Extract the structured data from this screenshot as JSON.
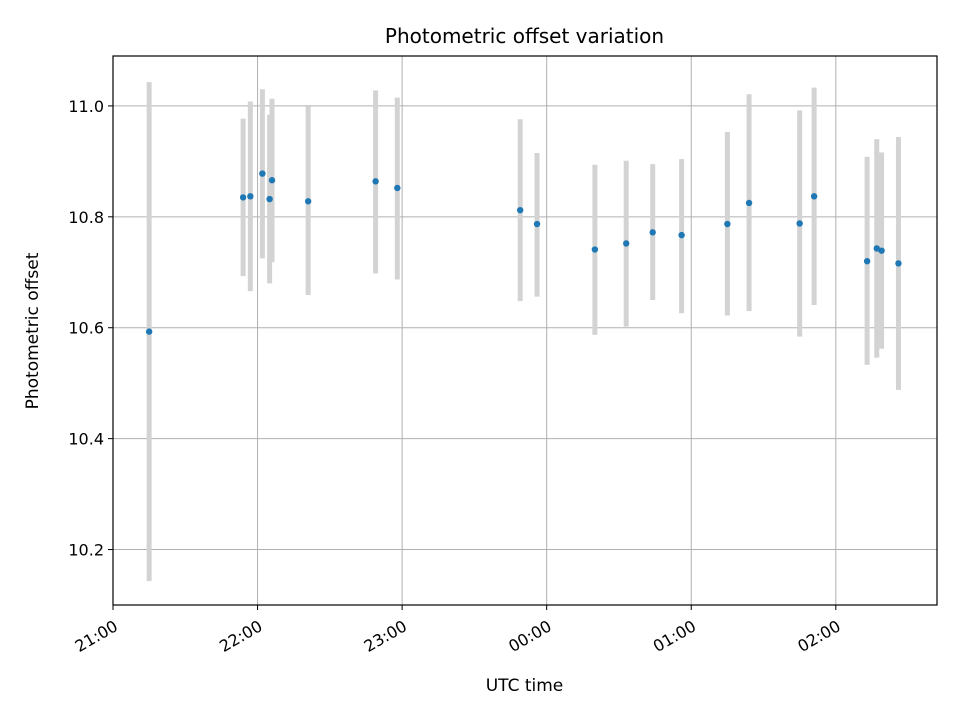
{
  "chart_data": {
    "type": "scatter",
    "title": "Photometric offset variation",
    "xlabel": "UTC time",
    "ylabel": "Photometric offset",
    "xlim": [
      "21:00",
      "02:42"
    ],
    "ylim": [
      10.1,
      11.09
    ],
    "x_ticks": [
      "21:00",
      "22:00",
      "23:00",
      "00:00",
      "01:00",
      "02:00"
    ],
    "y_ticks": [
      10.2,
      10.4,
      10.6,
      10.8,
      11.0
    ],
    "grid": true,
    "marker_color": "#1f77b4",
    "errorbar_color": "#d3d3d3",
    "points": [
      {
        "t": "21:15",
        "y": 10.593,
        "lo": 10.143,
        "hi": 11.043
      },
      {
        "t": "21:54",
        "y": 10.835,
        "lo": 10.693,
        "hi": 10.977
      },
      {
        "t": "21:57",
        "y": 10.837,
        "lo": 10.666,
        "hi": 11.008
      },
      {
        "t": "22:02",
        "y": 10.878,
        "lo": 10.725,
        "hi": 11.03
      },
      {
        "t": "22:05",
        "y": 10.832,
        "lo": 10.68,
        "hi": 10.984
      },
      {
        "t": "22:06",
        "y": 10.866,
        "lo": 10.718,
        "hi": 11.013
      },
      {
        "t": "22:21",
        "y": 10.828,
        "lo": 10.659,
        "hi": 10.999
      },
      {
        "t": "22:49",
        "y": 10.864,
        "lo": 10.698,
        "hi": 11.028
      },
      {
        "t": "22:58",
        "y": 10.852,
        "lo": 10.687,
        "hi": 11.015
      },
      {
        "t": "23:49",
        "y": 10.812,
        "lo": 10.648,
        "hi": 10.976
      },
      {
        "t": "23:56",
        "y": 10.787,
        "lo": 10.656,
        "hi": 10.915
      },
      {
        "t": "00:20",
        "y": 10.741,
        "lo": 10.587,
        "hi": 10.894
      },
      {
        "t": "00:33",
        "y": 10.752,
        "lo": 10.602,
        "hi": 10.901
      },
      {
        "t": "00:44",
        "y": 10.772,
        "lo": 10.65,
        "hi": 10.895
      },
      {
        "t": "00:56",
        "y": 10.767,
        "lo": 10.626,
        "hi": 10.904
      },
      {
        "t": "01:15",
        "y": 10.787,
        "lo": 10.622,
        "hi": 10.953
      },
      {
        "t": "01:24",
        "y": 10.825,
        "lo": 10.63,
        "hi": 11.021
      },
      {
        "t": "01:45",
        "y": 10.788,
        "lo": 10.584,
        "hi": 10.992
      },
      {
        "t": "01:51",
        "y": 10.837,
        "lo": 10.641,
        "hi": 11.033
      },
      {
        "t": "02:13",
        "y": 10.72,
        "lo": 10.533,
        "hi": 10.908
      },
      {
        "t": "02:17",
        "y": 10.743,
        "lo": 10.546,
        "hi": 10.94
      },
      {
        "t": "02:19",
        "y": 10.739,
        "lo": 10.562,
        "hi": 10.916
      },
      {
        "t": "02:26",
        "y": 10.716,
        "lo": 10.488,
        "hi": 10.944
      }
    ]
  }
}
